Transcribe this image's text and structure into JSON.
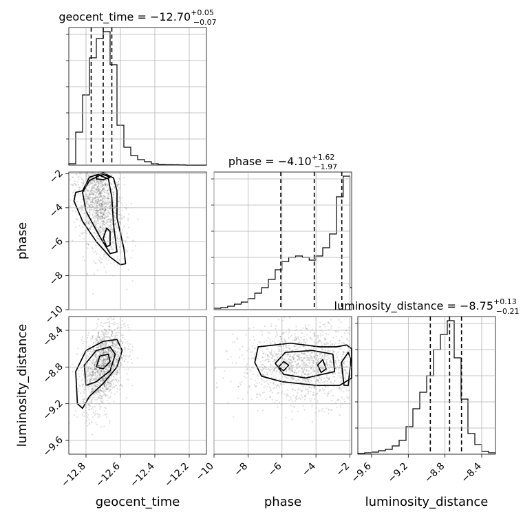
{
  "chart_data": {
    "type": "corner",
    "parameters": [
      {
        "key": "geocent_time",
        "label": "geocent_time",
        "range": [
          -12.9,
          -12.1
        ],
        "ticks": [
          -12.8,
          -12.6,
          -12.4,
          -12.2
        ],
        "tick_labels": [
          "−12.8",
          "−12.6",
          "−12.4",
          "−12.2"
        ]
      },
      {
        "key": "phase",
        "label": "phase",
        "range": [
          -10.0,
          -1.9
        ],
        "ticks": [
          -10,
          -8,
          -6,
          -4,
          -2
        ],
        "tick_labels": [
          "−10",
          "−8",
          "−6",
          "−4",
          "−2"
        ]
      },
      {
        "key": "luminosity_distance",
        "label": "luminosity_distance",
        "range": [
          -9.75,
          -8.25
        ],
        "ticks": [
          -9.6,
          -9.2,
          -8.8,
          -8.4
        ],
        "tick_labels": [
          "−9.6",
          "−9.2",
          "−8.8",
          "−8.4"
        ]
      }
    ],
    "titles": {
      "geocent_time": {
        "text": "geocent_time = −12.70",
        "sup": "+0.05",
        "sub": "−0.07"
      },
      "phase": {
        "text": "phase = −4.10",
        "sup": "+1.62",
        "sub": "−1.97"
      },
      "luminosity_distance": {
        "text": "luminosity_distance = −8.75",
        "sup": "+0.13",
        "sub": "−0.21"
      }
    },
    "quantiles": {
      "geocent_time": [
        -12.77,
        -12.7,
        -12.65
      ],
      "phase": [
        -6.07,
        -4.1,
        -2.48
      ],
      "luminosity_distance": [
        -8.96,
        -8.75,
        -8.62
      ]
    },
    "histograms": {
      "geocent_time": {
        "edges": [
          -12.9,
          -12.86,
          -12.82,
          -12.78,
          -12.74,
          -12.7,
          -12.66,
          -12.62,
          -12.58,
          -12.54,
          -12.5,
          -12.46,
          -12.42,
          -12.38,
          -12.34,
          -12.3,
          -12.26,
          -12.22,
          -12.18,
          -12.14,
          -12.1
        ],
        "counts": [
          0.01,
          0.24,
          0.51,
          0.78,
          0.92,
          0.97,
          0.73,
          0.29,
          0.13,
          0.07,
          0.04,
          0.025,
          0.01,
          0.005,
          0.004,
          0.003,
          0.002,
          0.0,
          0.0,
          0.0
        ]
      },
      "phase": {
        "edges": [
          -10.0,
          -9.6,
          -9.2,
          -8.8,
          -8.4,
          -8.0,
          -7.6,
          -7.2,
          -6.8,
          -6.4,
          -6.0,
          -5.6,
          -5.2,
          -4.8,
          -4.4,
          -4.0,
          -3.6,
          -3.2,
          -2.8,
          -2.4,
          -2.0,
          -1.9
        ],
        "counts": [
          0.01,
          0.015,
          0.025,
          0.04,
          0.055,
          0.08,
          0.12,
          0.16,
          0.22,
          0.29,
          0.35,
          0.38,
          0.39,
          0.38,
          0.36,
          0.39,
          0.45,
          0.55,
          0.82,
          0.97,
          0.16
        ]
      },
      "luminosity_distance": {
        "edges": [
          -9.75,
          -9.675,
          -9.6,
          -9.525,
          -9.45,
          -9.375,
          -9.3,
          -9.225,
          -9.15,
          -9.075,
          -9.0,
          -8.925,
          -8.85,
          -8.775,
          -8.7,
          -8.625,
          -8.55,
          -8.475,
          -8.4,
          -8.325,
          -8.25
        ],
        "counts": [
          0.005,
          0.01,
          0.015,
          0.025,
          0.035,
          0.06,
          0.1,
          0.2,
          0.33,
          0.45,
          0.57,
          0.76,
          0.87,
          0.97,
          0.7,
          0.4,
          0.15,
          0.07,
          0.02,
          0.01
        ]
      }
    },
    "samples": {
      "geocent_time_vs_phase": {
        "mean": [
          -12.72,
          -3.8
        ],
        "sd": [
          0.07,
          1.4
        ],
        "count": 1400,
        "slope": -9.0
      },
      "geocent_time_vs_luminosity_distance": {
        "mean": [
          -12.7,
          -8.78
        ],
        "sd": [
          0.06,
          0.22
        ],
        "count": 1400,
        "slope": 1.5
      },
      "phase_vs_luminosity_distance": {
        "mean": [
          -4.6,
          -8.78
        ],
        "sd": [
          1.9,
          0.21
        ],
        "count": 1400,
        "slope": 0.0
      }
    },
    "contours": {
      "geocent_time_vs_phase": [
        [
          [
            -12.82,
            -3.0
          ],
          [
            -12.78,
            -2.2
          ],
          [
            -12.7,
            -1.95
          ],
          [
            -12.64,
            -2.25
          ],
          [
            -12.62,
            -3.0
          ],
          [
            -12.62,
            -4.6
          ],
          [
            -12.58,
            -6.4
          ],
          [
            -12.57,
            -7.3
          ],
          [
            -12.6,
            -7.35
          ],
          [
            -12.66,
            -6.9
          ],
          [
            -12.74,
            -6.0
          ],
          [
            -12.82,
            -4.8
          ],
          [
            -12.87,
            -3.6
          ],
          [
            -12.86,
            -3.1
          ]
        ],
        [
          [
            -12.78,
            -2.4
          ],
          [
            -12.72,
            -2.1
          ],
          [
            -12.67,
            -2.3
          ],
          [
            -12.65,
            -3.4
          ],
          [
            -12.64,
            -5.0
          ],
          [
            -12.62,
            -6.6
          ],
          [
            -12.66,
            -6.7
          ],
          [
            -12.72,
            -5.7
          ],
          [
            -12.8,
            -4.2
          ],
          [
            -12.82,
            -3.1
          ]
        ],
        [
          [
            -12.74,
            -2.15
          ],
          [
            -12.7,
            -2.05
          ],
          [
            -12.66,
            -2.2
          ],
          [
            -12.7,
            -2.35
          ],
          [
            -12.74,
            -2.3
          ]
        ],
        [
          [
            -12.68,
            -5.2
          ],
          [
            -12.66,
            -5.4
          ],
          [
            -12.66,
            -6.2
          ],
          [
            -12.68,
            -6.3
          ],
          [
            -12.7,
            -5.8
          ]
        ]
      ],
      "geocent_time_vs_luminosity_distance": [
        [
          [
            -12.85,
            -9.2
          ],
          [
            -12.86,
            -8.85
          ],
          [
            -12.8,
            -8.62
          ],
          [
            -12.7,
            -8.52
          ],
          [
            -12.62,
            -8.5
          ],
          [
            -12.59,
            -8.62
          ],
          [
            -12.62,
            -8.8
          ],
          [
            -12.7,
            -8.98
          ],
          [
            -12.78,
            -9.12
          ],
          [
            -12.82,
            -9.25
          ]
        ],
        [
          [
            -12.8,
            -9.0
          ],
          [
            -12.81,
            -8.78
          ],
          [
            -12.74,
            -8.62
          ],
          [
            -12.66,
            -8.58
          ],
          [
            -12.63,
            -8.66
          ],
          [
            -12.66,
            -8.84
          ],
          [
            -12.74,
            -8.96
          ]
        ],
        [
          [
            -12.74,
            -8.8
          ],
          [
            -12.72,
            -8.68
          ],
          [
            -12.67,
            -8.66
          ],
          [
            -12.66,
            -8.74
          ],
          [
            -12.7,
            -8.82
          ]
        ]
      ],
      "phase_vs_luminosity_distance": [
        [
          [
            -7.6,
            -8.75
          ],
          [
            -7.4,
            -8.58
          ],
          [
            -5.5,
            -8.54
          ],
          [
            -3.8,
            -8.58
          ],
          [
            -2.8,
            -8.58
          ],
          [
            -2.2,
            -8.56
          ],
          [
            -1.9,
            -8.6
          ],
          [
            -1.9,
            -8.92
          ],
          [
            -2.6,
            -9.0
          ],
          [
            -4.0,
            -9.0
          ],
          [
            -6.0,
            -8.96
          ],
          [
            -7.2,
            -8.9
          ]
        ],
        [
          [
            -6.4,
            -8.76
          ],
          [
            -5.8,
            -8.64
          ],
          [
            -4.2,
            -8.62
          ],
          [
            -3.0,
            -8.66
          ],
          [
            -2.9,
            -8.85
          ],
          [
            -4.6,
            -8.92
          ],
          [
            -5.9,
            -8.88
          ]
        ],
        [
          [
            -6.2,
            -8.8
          ],
          [
            -5.9,
            -8.74
          ],
          [
            -5.6,
            -8.78
          ],
          [
            -5.9,
            -8.84
          ]
        ],
        [
          [
            -3.9,
            -8.78
          ],
          [
            -3.6,
            -8.72
          ],
          [
            -3.4,
            -8.82
          ],
          [
            -3.7,
            -8.86
          ]
        ],
        [
          [
            -2.5,
            -8.75
          ],
          [
            -2.1,
            -8.64
          ],
          [
            -1.95,
            -8.72
          ],
          [
            -2.1,
            -9.0
          ],
          [
            -2.35,
            -9.0
          ]
        ]
      ]
    }
  }
}
